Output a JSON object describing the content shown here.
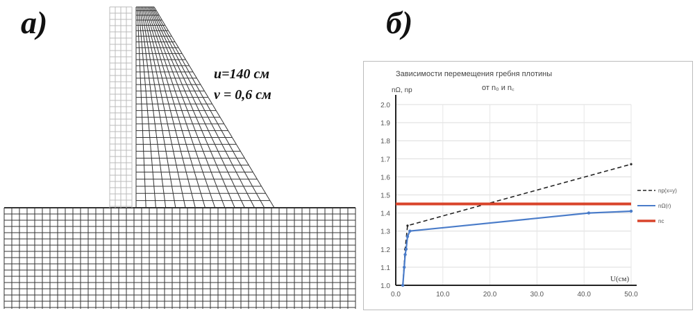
{
  "panel_a": {
    "label": "а)",
    "displacement_u": "u=140 см",
    "displacement_v": "v = 0,6 см"
  },
  "panel_b": {
    "label": "б)"
  },
  "chart_data": {
    "type": "line",
    "title": "Зависимости перемещения гребня плотины",
    "subtitle": "от n₀ и n꜀",
    "ylabel": "nΩ, np",
    "xlabel": "U(см)",
    "xlim": [
      0,
      50
    ],
    "ylim": [
      1.0,
      2.0
    ],
    "x_ticks": [
      "0.0",
      "10.0",
      "20.0",
      "30.0",
      "40.0",
      "50.0"
    ],
    "y_ticks": [
      "1.0",
      "1.1",
      "1.2",
      "1.3",
      "1.4",
      "1.5",
      "1.6",
      "1.7",
      "1.8",
      "1.9",
      "2.0"
    ],
    "grid": true,
    "legend_position": "right",
    "series": [
      {
        "name": "np(x=y)",
        "style": "dashed",
        "color": "#222222",
        "x": [
          1.5,
          2.0,
          2.5,
          50.0
        ],
        "y": [
          1.0,
          1.2,
          1.33,
          1.67
        ]
      },
      {
        "name": "nΩ(r)",
        "style": "solid-marker",
        "color": "#4a7cc9",
        "x": [
          1.5,
          1.8,
          2.0,
          2.2,
          2.5,
          3.0,
          41.0,
          50.0
        ],
        "y": [
          1.0,
          1.1,
          1.17,
          1.2,
          1.27,
          1.3,
          1.4,
          1.41
        ]
      },
      {
        "name": "nc",
        "style": "solid-thick",
        "color": "#d9442b",
        "x": [
          0,
          50
        ],
        "y": [
          1.45,
          1.45
        ]
      }
    ]
  }
}
